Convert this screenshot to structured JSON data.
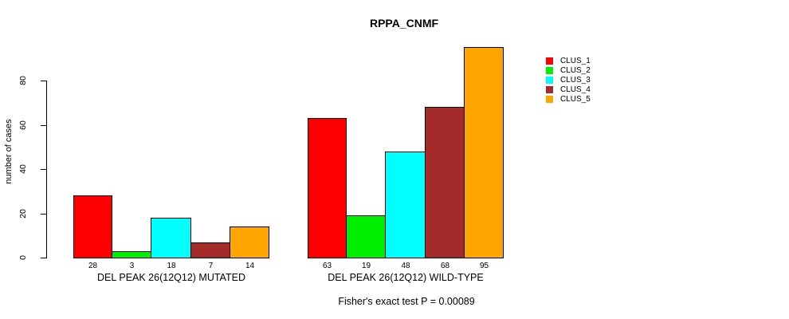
{
  "chart_data": {
    "type": "bar",
    "title": "RPPA_CNMF",
    "xlabel": "",
    "ylabel": "number of cases",
    "yticks": [
      0,
      20,
      40,
      60,
      80
    ],
    "ylim": [
      0,
      95
    ],
    "grid": false,
    "legend_position": "top-right",
    "series_names": [
      "CLUS_1",
      "CLUS_2",
      "CLUS_3",
      "CLUS_4",
      "CLUS_5"
    ],
    "series_colors": [
      "#ff0000",
      "#00ee00",
      "#00ffff",
      "#a52a2a",
      "#ffa500"
    ],
    "groups": [
      {
        "label": "DEL PEAK 26(12Q12) MUTATED",
        "values": [
          28,
          3,
          18,
          7,
          14
        ]
      },
      {
        "label": "DEL PEAK 26(12Q12) WILD-TYPE",
        "values": [
          63,
          19,
          48,
          68,
          95
        ]
      }
    ],
    "bar_value_labels_shown": true,
    "annotation": "Fisher's exact test P = 0.00089",
    "colors": {
      "background": "#ffffff",
      "axis": "#000000",
      "text": "#000000",
      "bar_border": "#000000"
    }
  }
}
